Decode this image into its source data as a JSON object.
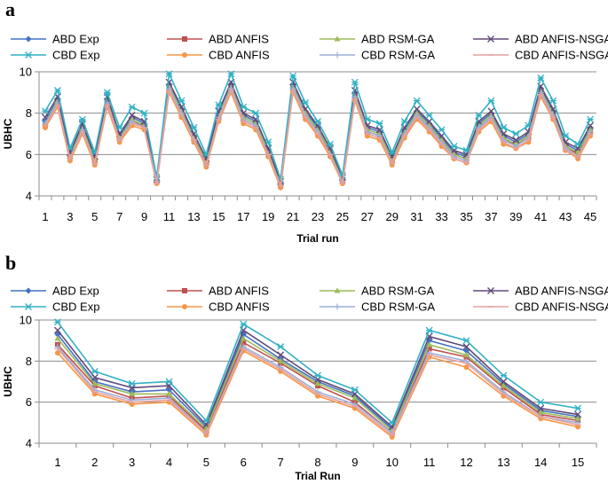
{
  "chart_data": [
    {
      "type": "line",
      "panel_label": "a",
      "xlabel": "Trial run",
      "ylabel": "UBHC",
      "ylim": [
        4,
        10
      ],
      "yticks": [
        "4",
        "6",
        "8",
        "10"
      ],
      "x": [
        1,
        2,
        3,
        4,
        5,
        6,
        7,
        8,
        9,
        10,
        11,
        12,
        13,
        14,
        15,
        16,
        17,
        18,
        19,
        20,
        21,
        22,
        23,
        24,
        25,
        26,
        27,
        28,
        29,
        30,
        31,
        32,
        33,
        34,
        35,
        36,
        37,
        38,
        39,
        40,
        41,
        42,
        43,
        44,
        45
      ],
      "xtick_labels": [
        "1",
        "3",
        "5",
        "7",
        "9",
        "11",
        "13",
        "15",
        "17",
        "19",
        "21",
        "23",
        "25",
        "27",
        "29",
        "31",
        "33",
        "35",
        "37",
        "39",
        "41",
        "43",
        "45"
      ],
      "grid": "horizontal",
      "legend_position": "top",
      "series": [
        {
          "name": "ABD Exp",
          "color": "#4472C4",
          "marker": "diamond",
          "values": [
            7.6,
            8.7,
            6.0,
            7.4,
            5.8,
            8.7,
            6.9,
            7.8,
            7.5,
            4.7,
            9.4,
            8.2,
            6.9,
            5.7,
            8.0,
            9.4,
            7.9,
            7.6,
            6.2,
            4.6,
            9.4,
            8.1,
            7.3,
            6.2,
            4.8,
            9.0,
            7.3,
            7.1,
            5.8,
            7.2,
            8.1,
            7.5,
            6.8,
            6.1,
            5.9,
            7.5,
            8.0,
            6.9,
            6.6,
            7.0,
            9.2,
            8.1,
            6.5,
            6.2,
            7.3
          ]
        },
        {
          "name": "ABD ANFIS",
          "color": "#C0504D",
          "marker": "square",
          "values": [
            7.4,
            8.5,
            5.9,
            7.2,
            5.7,
            8.5,
            6.8,
            7.6,
            7.4,
            4.7,
            9.2,
            8.0,
            6.8,
            5.6,
            7.8,
            9.2,
            7.7,
            7.4,
            6.1,
            4.5,
            9.2,
            7.9,
            7.1,
            6.1,
            4.7,
            8.8,
            7.1,
            6.9,
            5.7,
            7.0,
            7.9,
            7.3,
            6.6,
            6.0,
            5.8,
            7.3,
            7.8,
            6.7,
            6.5,
            6.8,
            9.0,
            7.9,
            6.4,
            6.0,
            7.1
          ]
        },
        {
          "name": "ABD RSM-GA",
          "color": "#9BBB59",
          "marker": "triangle",
          "values": [
            7.5,
            8.6,
            5.9,
            7.3,
            5.8,
            8.6,
            6.8,
            7.7,
            7.4,
            4.7,
            9.3,
            8.1,
            6.8,
            5.7,
            7.9,
            9.3,
            7.8,
            7.5,
            6.2,
            4.6,
            9.3,
            8.0,
            7.2,
            6.2,
            4.8,
            8.9,
            7.2,
            7.0,
            5.8,
            7.1,
            8.0,
            7.4,
            6.7,
            6.0,
            5.8,
            7.4,
            7.9,
            6.8,
            6.5,
            6.9,
            9.1,
            8.0,
            6.4,
            6.1,
            7.2
          ]
        },
        {
          "name": "ABD ANFIS-NSGA",
          "color": "#604A7B",
          "marker": "x",
          "values": [
            7.8,
            8.8,
            6.1,
            7.5,
            5.9,
            8.8,
            7.0,
            7.9,
            7.6,
            4.8,
            9.5,
            8.3,
            7.0,
            5.8,
            8.1,
            9.5,
            8.0,
            7.7,
            6.3,
            4.7,
            9.5,
            8.2,
            7.4,
            6.3,
            4.9,
            9.1,
            7.4,
            7.2,
            5.9,
            7.3,
            8.2,
            7.6,
            6.9,
            6.2,
            6.0,
            7.6,
            8.1,
            7.0,
            6.7,
            7.1,
            9.3,
            8.2,
            6.6,
            6.3,
            7.4
          ]
        },
        {
          "name": "CBD Exp",
          "color": "#31B1C4",
          "marker": "star",
          "values": [
            8.1,
            9.1,
            6.3,
            7.7,
            6.1,
            9.0,
            7.3,
            8.3,
            8.0,
            4.9,
            9.9,
            8.6,
            7.3,
            6.0,
            8.4,
            9.9,
            8.3,
            8.0,
            6.6,
            4.8,
            9.8,
            8.5,
            7.6,
            6.5,
            5.0,
            9.5,
            7.7,
            7.5,
            6.1,
            7.6,
            8.6,
            7.9,
            7.2,
            6.4,
            6.2,
            7.9,
            8.6,
            7.3,
            7.0,
            7.4,
            9.7,
            8.6,
            6.9,
            6.5,
            7.7
          ]
        },
        {
          "name": "CBD ANFIS",
          "color": "#F79646",
          "marker": "circle",
          "values": [
            7.3,
            8.3,
            5.7,
            7.0,
            5.5,
            8.3,
            6.6,
            7.4,
            7.2,
            4.6,
            9.0,
            7.8,
            6.6,
            5.4,
            7.6,
            9.0,
            7.5,
            7.2,
            5.9,
            4.4,
            9.0,
            7.7,
            6.9,
            5.9,
            4.6,
            8.6,
            6.9,
            6.7,
            5.5,
            6.8,
            7.7,
            7.1,
            6.4,
            5.8,
            5.6,
            7.1,
            7.6,
            6.5,
            6.3,
            6.6,
            8.8,
            7.7,
            6.2,
            5.8,
            6.9
          ]
        },
        {
          "name": "CBD RSM-GA",
          "color": "#9CB1D9",
          "marker": "plus",
          "values": [
            7.5,
            8.5,
            5.8,
            7.2,
            5.6,
            8.5,
            6.7,
            7.6,
            7.3,
            4.7,
            9.2,
            8.0,
            6.7,
            5.5,
            7.8,
            9.2,
            7.7,
            7.4,
            6.0,
            4.5,
            9.2,
            7.9,
            7.1,
            6.0,
            4.7,
            8.8,
            7.1,
            6.9,
            5.6,
            7.0,
            7.9,
            7.3,
            6.6,
            5.9,
            5.7,
            7.3,
            7.8,
            6.7,
            6.4,
            6.8,
            9.0,
            7.9,
            6.3,
            5.9,
            7.1
          ]
        },
        {
          "name": "CBD ANFIS-NSGA",
          "color": "#E6A0A0",
          "marker": "dash",
          "values": [
            7.4,
            8.4,
            5.8,
            7.1,
            5.6,
            8.4,
            6.7,
            7.5,
            7.3,
            4.6,
            9.1,
            7.9,
            6.7,
            5.5,
            7.7,
            9.1,
            7.6,
            7.3,
            6.0,
            4.5,
            9.1,
            7.8,
            7.0,
            6.0,
            4.6,
            8.7,
            7.0,
            6.8,
            5.6,
            6.9,
            7.8,
            7.2,
            6.5,
            5.8,
            5.6,
            7.2,
            7.7,
            6.6,
            6.3,
            6.7,
            8.9,
            7.8,
            6.2,
            5.9,
            7.0
          ]
        }
      ]
    },
    {
      "type": "line",
      "panel_label": "b",
      "xlabel": "Trial Run",
      "ylabel": "UBHC",
      "ylim": [
        4,
        10
      ],
      "yticks": [
        "4",
        "6",
        "8",
        "10"
      ],
      "x": [
        1,
        2,
        3,
        4,
        5,
        6,
        7,
        8,
        9,
        10,
        11,
        12,
        13,
        14,
        15
      ],
      "xtick_labels": [
        "1",
        "2",
        "3",
        "4",
        "5",
        "6",
        "7",
        "8",
        "9",
        "10",
        "11",
        "12",
        "13",
        "14",
        "15"
      ],
      "grid": "horizontal",
      "legend_position": "top",
      "series": [
        {
          "name": "ABD Exp",
          "color": "#4472C4",
          "marker": "diamond",
          "values": [
            9.3,
            7.0,
            6.5,
            6.6,
            4.8,
            9.3,
            8.1,
            7.0,
            6.3,
            4.7,
            9.0,
            8.5,
            6.9,
            5.6,
            5.3
          ]
        },
        {
          "name": "ABD ANFIS",
          "color": "#C0504D",
          "marker": "square",
          "values": [
            8.8,
            6.8,
            6.2,
            6.3,
            4.6,
            8.9,
            7.9,
            6.8,
            6.0,
            4.5,
            8.6,
            8.2,
            6.7,
            5.4,
            5.1
          ]
        },
        {
          "name": "ABD RSM-GA",
          "color": "#9BBB59",
          "marker": "triangle",
          "values": [
            9.1,
            6.9,
            6.4,
            6.4,
            4.7,
            9.1,
            8.0,
            6.9,
            6.2,
            4.6,
            8.8,
            8.3,
            6.8,
            5.5,
            5.2
          ]
        },
        {
          "name": "ABD ANFIS-NSGA",
          "color": "#604A7B",
          "marker": "x",
          "values": [
            9.5,
            7.2,
            6.7,
            6.8,
            4.9,
            9.5,
            8.3,
            7.1,
            6.4,
            4.8,
            9.2,
            8.7,
            7.0,
            5.7,
            5.4
          ]
        },
        {
          "name": "CBD Exp",
          "color": "#31B1C4",
          "marker": "star",
          "values": [
            9.9,
            7.5,
            6.9,
            7.0,
            5.1,
            9.8,
            8.7,
            7.3,
            6.6,
            5.0,
            9.5,
            9.0,
            7.3,
            6.0,
            5.7
          ]
        },
        {
          "name": "CBD ANFIS",
          "color": "#F79646",
          "marker": "circle",
          "values": [
            8.4,
            6.4,
            5.9,
            6.0,
            4.4,
            8.5,
            7.5,
            6.3,
            5.7,
            4.3,
            8.2,
            7.7,
            6.3,
            5.2,
            4.8
          ]
        },
        {
          "name": "CBD RSM-GA",
          "color": "#9CB1D9",
          "marker": "plus",
          "values": [
            8.7,
            6.6,
            6.1,
            6.2,
            4.5,
            8.7,
            7.7,
            6.5,
            5.9,
            4.5,
            8.4,
            8.0,
            6.5,
            5.3,
            5.0
          ]
        },
        {
          "name": "CBD ANFIS-NSGA",
          "color": "#E6A0A0",
          "marker": "dash",
          "values": [
            8.6,
            6.5,
            6.0,
            6.1,
            4.5,
            8.6,
            7.6,
            6.4,
            5.8,
            4.4,
            8.3,
            7.9,
            6.4,
            5.3,
            4.9
          ]
        }
      ]
    }
  ]
}
